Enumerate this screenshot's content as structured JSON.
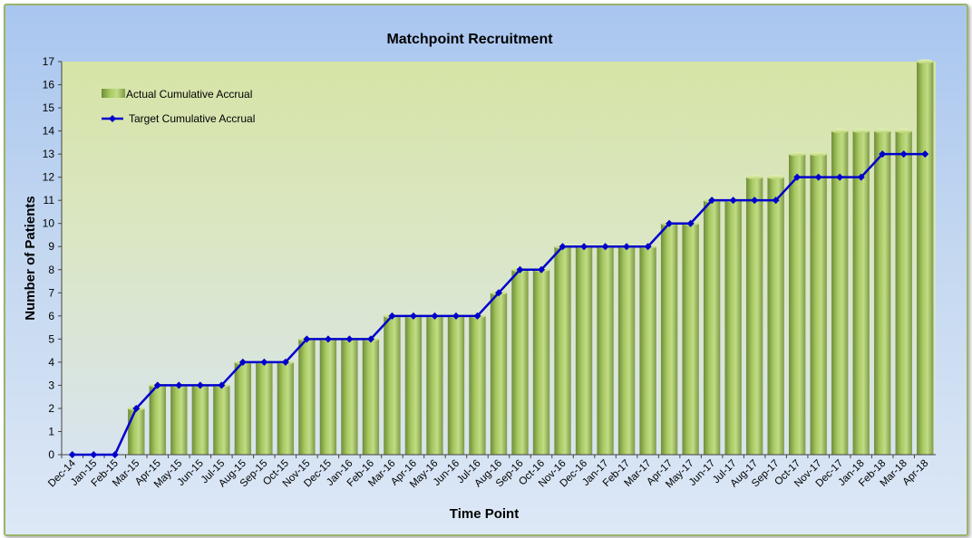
{
  "chart_data": {
    "type": "bar",
    "title": "Matchpoint Recruitment",
    "xlabel": "Time Point",
    "ylabel": "Number of Patients",
    "ylim": [
      0,
      17
    ],
    "yticks": [
      0,
      1,
      2,
      3,
      4,
      5,
      6,
      7,
      8,
      9,
      10,
      11,
      12,
      13,
      14,
      15,
      16,
      17
    ],
    "categories": [
      "Dec-14",
      "Jan-15",
      "Feb-15",
      "Mar-15",
      "Apr-15",
      "May-15",
      "Jun-15",
      "Jul-15",
      "Aug-15",
      "Sep-15",
      "Oct-15",
      "Nov-15",
      "Dec-15",
      "Jan-16",
      "Feb-16",
      "Mar-16",
      "Apr-16",
      "May-16",
      "Jun-16",
      "Jul-16",
      "Aug-16",
      "Sep-16",
      "Oct-16",
      "Nov-16",
      "Dec-16",
      "Jan-17",
      "Feb-17",
      "Mar-17",
      "Apr-17",
      "May-17",
      "Jun-17",
      "Jul-17",
      "Aug-17",
      "Sep-17",
      "Oct-17",
      "Nov-17",
      "Dec-17",
      "Jan-18",
      "Feb-18",
      "Mar-18",
      "Apr-18"
    ],
    "series": [
      {
        "name": "Actual Cumulative Accrual",
        "kind": "bar",
        "color": "#9bbb59",
        "values": [
          0,
          0,
          0,
          2,
          3,
          3,
          3,
          3,
          4,
          4,
          4,
          5,
          5,
          5,
          5,
          6,
          6,
          6,
          6,
          6,
          7,
          8,
          8,
          9,
          9,
          9,
          9,
          9,
          10,
          10,
          11,
          11,
          12,
          12,
          13,
          13,
          14,
          14,
          14,
          14,
          17
        ]
      },
      {
        "name": "Target Cumulative Accrual",
        "kind": "line",
        "color": "#0000cc",
        "values": [
          0,
          0,
          0,
          2,
          3,
          3,
          3,
          3,
          4,
          4,
          4,
          5,
          5,
          5,
          5,
          6,
          6,
          6,
          6,
          6,
          7,
          8,
          8,
          9,
          9,
          9,
          9,
          9,
          10,
          10,
          11,
          11,
          11,
          11,
          12,
          12,
          12,
          12,
          13,
          13,
          13
        ]
      }
    ],
    "legend": "top-left",
    "grid": false
  }
}
